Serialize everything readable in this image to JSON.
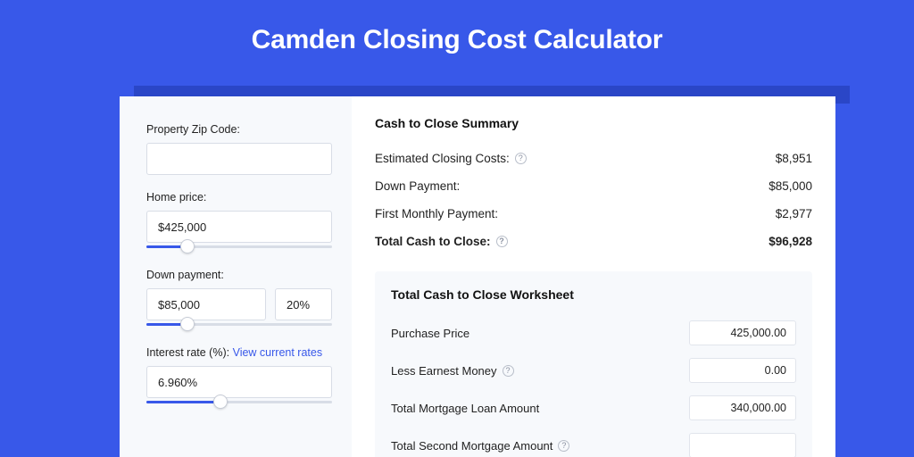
{
  "page": {
    "title": "Camden Closing Cost Calculator",
    "background_color": "#3858e9",
    "shadow_color": "#2a46c7",
    "title_color": "#ffffff",
    "title_fontsize": 30
  },
  "sidebar": {
    "background_color": "#f7f9fc",
    "fields": {
      "zip": {
        "label": "Property Zip Code:",
        "value": ""
      },
      "home_price": {
        "label": "Home price:",
        "value": "$425,000",
        "slider_pct": 22
      },
      "down_payment": {
        "label": "Down payment:",
        "value": "$85,000",
        "pct_value": "20%",
        "slider_pct": 22
      },
      "interest_rate": {
        "label": "Interest rate (%):",
        "link_text": "View current rates",
        "value": "6.960%",
        "slider_pct": 40
      }
    },
    "accent_color": "#3858e9",
    "input_border_color": "#d8dde6"
  },
  "summary": {
    "title": "Cash to Close Summary",
    "rows": [
      {
        "label": "Estimated Closing Costs:",
        "help": true,
        "value": "$8,951",
        "bold": false
      },
      {
        "label": "Down Payment:",
        "help": false,
        "value": "$85,000",
        "bold": false
      },
      {
        "label": "First Monthly Payment:",
        "help": false,
        "value": "$2,977",
        "bold": false
      },
      {
        "label": "Total Cash to Close:",
        "help": true,
        "value": "$96,928",
        "bold": true
      }
    ]
  },
  "worksheet": {
    "title": "Total Cash to Close Worksheet",
    "background_color": "#f7f9fc",
    "rows": [
      {
        "label": "Purchase Price",
        "help": false,
        "value": "425,000.00"
      },
      {
        "label": "Less Earnest Money",
        "help": true,
        "value": "0.00"
      },
      {
        "label": "Total Mortgage Loan Amount",
        "help": false,
        "value": "340,000.00"
      },
      {
        "label": "Total Second Mortgage Amount",
        "help": true,
        "value": ""
      }
    ]
  }
}
